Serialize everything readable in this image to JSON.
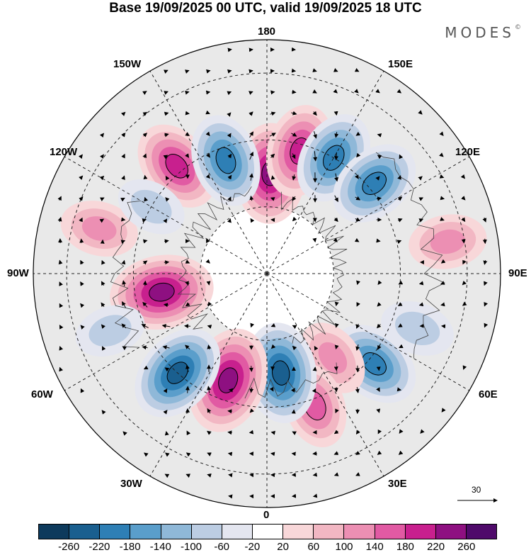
{
  "title": "Base 19/09/2025 00 UTC, valid 19/09/2025 18 UTC",
  "brand": "MODES",
  "brand_mark": "©",
  "longitude_labels": {
    "n180": "180",
    "w150": "150W",
    "e150": "150E",
    "w120": "120W",
    "e120": "120E",
    "w90": "90W",
    "e90": "90E",
    "w60": "60W",
    "e60": "60E",
    "w30": "30W",
    "e30": "30E",
    "s0": "0"
  },
  "vector_scale": "30",
  "colorbar": {
    "colors": [
      "#0d3a5c",
      "#1a5f8f",
      "#2e7fb5",
      "#5a9ecb",
      "#8fb8d8",
      "#bccde3",
      "#e4e6f0",
      "#ffffff",
      "#f8d7d9",
      "#f2b7c3",
      "#ec8fb3",
      "#e15aa3",
      "#c8208e",
      "#8e1081",
      "#4f0a6a"
    ],
    "ticks": [
      "-260",
      "-220",
      "-180",
      "-140",
      "-100",
      "-60",
      "-20",
      "20",
      "60",
      "100",
      "140",
      "180",
      "220",
      "260"
    ]
  },
  "anomalies": [
    {
      "lon": 178,
      "colat": 30,
      "value": 240
    },
    {
      "lon": 165,
      "colat": 38,
      "value": 200
    },
    {
      "lon": 150,
      "colat": 40,
      "value": -200
    },
    {
      "lon": 130,
      "colat": 42,
      "value": -200
    },
    {
      "lon": 100,
      "colat": 55,
      "value": 120
    },
    {
      "lon": 70,
      "colat": 48,
      "value": -100
    },
    {
      "lon": 50,
      "colat": 42,
      "value": -200
    },
    {
      "lon": 38,
      "colat": 32,
      "value": 120
    },
    {
      "lon": 20,
      "colat": 42,
      "value": 160
    },
    {
      "lon": 8,
      "colat": 30,
      "value": -240
    },
    {
      "lon": -20,
      "colat": 34,
      "value": 270
    },
    {
      "lon": -42,
      "colat": 40,
      "value": -240
    },
    {
      "lon": -80,
      "colat": 32,
      "value": 260
    },
    {
      "lon": -105,
      "colat": 52,
      "value": 120
    },
    {
      "lon": -140,
      "colat": 42,
      "value": 200
    },
    {
      "lon": -160,
      "colat": 36,
      "value": -200
    },
    {
      "lon": -120,
      "colat": 40,
      "value": -80
    },
    {
      "lon": -70,
      "colat": 50,
      "value": -80
    }
  ]
}
